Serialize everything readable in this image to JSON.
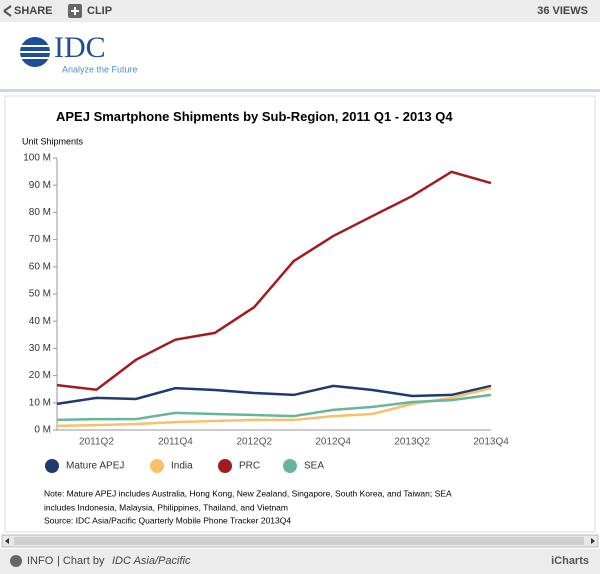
{
  "toolbar": {
    "share": "SHARE",
    "clip": "CLIP",
    "views": "36 VIEWS"
  },
  "logo": {
    "name": "IDC",
    "tagline": "Analyze the Future"
  },
  "chart_data": {
    "type": "line",
    "title": "APEJ Smartphone Shipments by Sub-Region, 2011 Q1 - 2013 Q4",
    "y_label": "Unit Shipments",
    "categories": [
      null,
      "2011Q2",
      null,
      "2011Q4",
      null,
      "2012Q2",
      null,
      "2012Q4",
      null,
      "2013Q2",
      null,
      "2013Q4"
    ],
    "ylim": [
      0,
      100
    ],
    "yticks": [
      {
        "value": 0,
        "label": "0 M"
      },
      {
        "value": 10,
        "label": "10 M"
      },
      {
        "value": 20,
        "label": "20 M"
      },
      {
        "value": 30,
        "label": "30 M"
      },
      {
        "value": 40,
        "label": "40 M"
      },
      {
        "value": 50,
        "label": "50 M"
      },
      {
        "value": 60,
        "label": "60 M"
      },
      {
        "value": 70,
        "label": "70 M"
      },
      {
        "value": 80,
        "label": "80 M"
      },
      {
        "value": 90,
        "label": "90 M"
      },
      {
        "value": 100,
        "label": "100 M"
      }
    ],
    "grid": false,
    "series": [
      {
        "name": "Mature APEJ",
        "color": "#1f3a6e",
        "values": [
          9.6,
          11.8,
          11.4,
          15.4,
          14.7,
          13.6,
          12.9,
          16.2,
          14.7,
          12.5,
          12.9,
          16.2
        ]
      },
      {
        "name": "India",
        "color": "#f9c06a",
        "values": [
          1.5,
          1.8,
          2.2,
          2.9,
          3.3,
          3.7,
          3.7,
          5.1,
          5.9,
          9.6,
          11.8,
          15.4
        ]
      },
      {
        "name": "PRC",
        "color": "#a31b1f",
        "values": [
          16.5,
          14.8,
          25.8,
          33.2,
          35.7,
          45.2,
          62.1,
          71.3,
          78.7,
          86,
          94.9,
          90.8
        ]
      },
      {
        "name": "SEA",
        "color": "#6ab59a",
        "values": [
          3.7,
          4,
          4,
          6.3,
          5.9,
          5.5,
          5.1,
          7.4,
          8.5,
          10.3,
          11,
          12.9
        ]
      }
    ],
    "notes": [
      "Note: Mature APEJ includes Australia, Hong Kong, New Zealand, Singapore, South Korea, and Taiwan; SEA",
      "includes Indonesia, Malaysia, Philippines, Thailand, and Vietnam",
      "Source: IDC Asia/Pacific Quarterly Mobile Phone Tracker 2013Q4"
    ]
  },
  "footer": {
    "info": "INFO",
    "chart_by": "| Chart by",
    "author": "IDC Asia/Pacific",
    "brand": "iCharts"
  }
}
